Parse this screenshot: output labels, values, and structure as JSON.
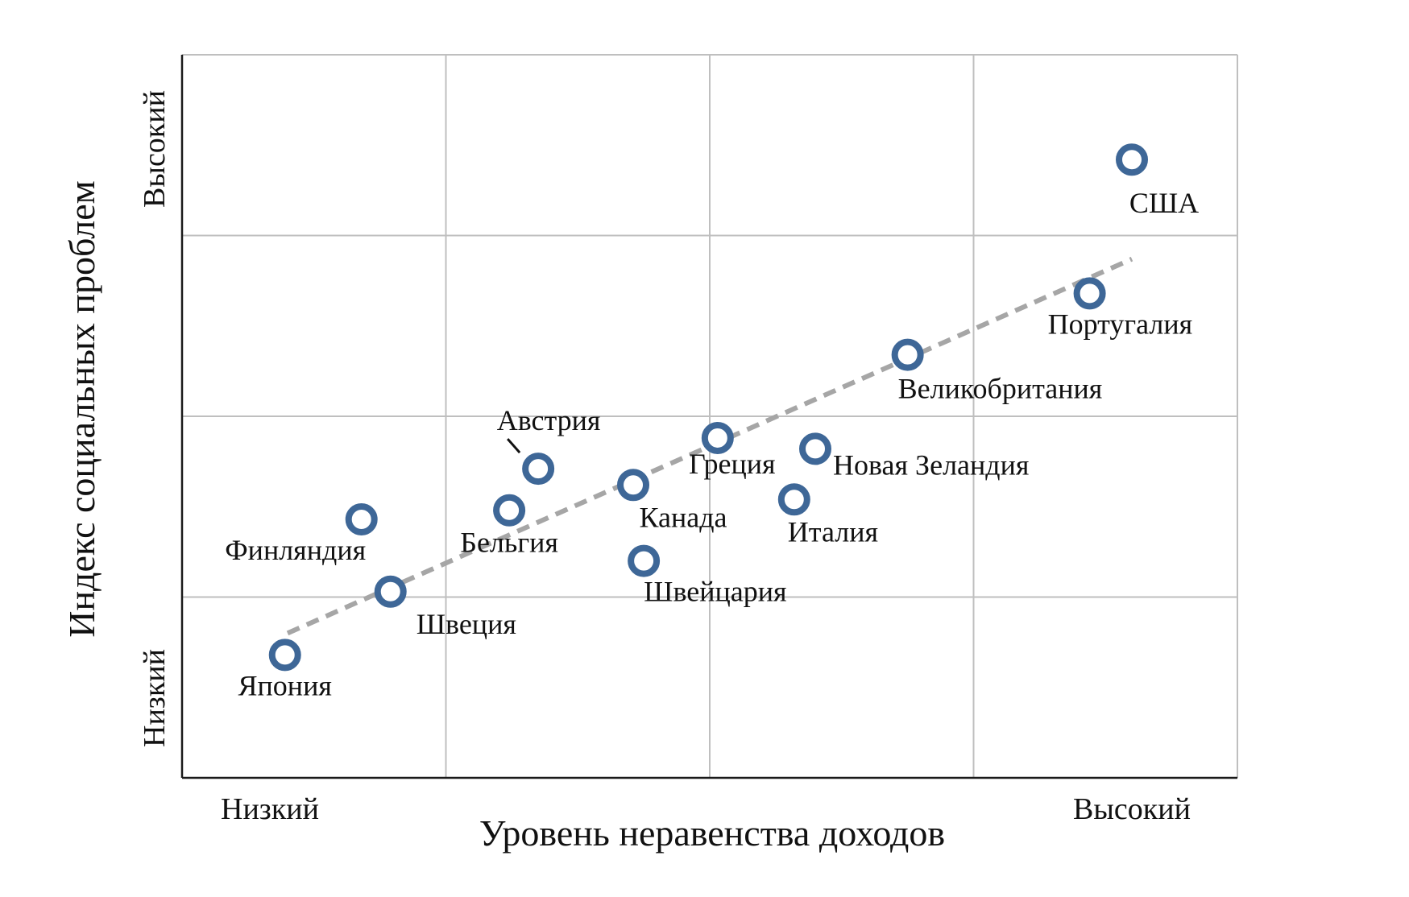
{
  "chart_data": {
    "type": "scatter",
    "title": "",
    "xlabel": "Уровень неравенства доходов",
    "ylabel": "Индекс социальных проблем",
    "x_ticks": {
      "low": "Низкий",
      "high": "Высокий"
    },
    "y_ticks": {
      "low": "Низкий",
      "high": "Высокий"
    },
    "xlim": [
      0,
      4
    ],
    "ylim": [
      0,
      4
    ],
    "grid": true,
    "colors": {
      "marker": "#3e6797",
      "trend": "#a6a6a6",
      "grid": "#bfbfbf",
      "axis": "#1a1a1a"
    },
    "trend_line": {
      "x": [
        0.4,
        3.6
      ],
      "y": [
        0.8,
        2.87
      ]
    },
    "points": [
      {
        "label": "Япония",
        "x": 0.39,
        "y": 0.68
      },
      {
        "label": "Финляндия",
        "x": 0.68,
        "y": 1.43
      },
      {
        "label": "Швеция",
        "x": 0.79,
        "y": 1.03
      },
      {
        "label": "Бельгия",
        "x": 1.24,
        "y": 1.48
      },
      {
        "label": "Австрия",
        "x": 1.35,
        "y": 1.71
      },
      {
        "label": "Канада",
        "x": 1.71,
        "y": 1.62
      },
      {
        "label": "Швейцария",
        "x": 1.75,
        "y": 1.2
      },
      {
        "label": "Греция",
        "x": 2.03,
        "y": 1.88
      },
      {
        "label": "Италия",
        "x": 2.32,
        "y": 1.54
      },
      {
        "label": "Новая Зеландия",
        "x": 2.4,
        "y": 1.82
      },
      {
        "label": "Великобритания",
        "x": 2.75,
        "y": 2.34
      },
      {
        "label": "Португалия",
        "x": 3.44,
        "y": 2.68
      },
      {
        "label": "США",
        "x": 3.6,
        "y": 3.42
      }
    ]
  }
}
